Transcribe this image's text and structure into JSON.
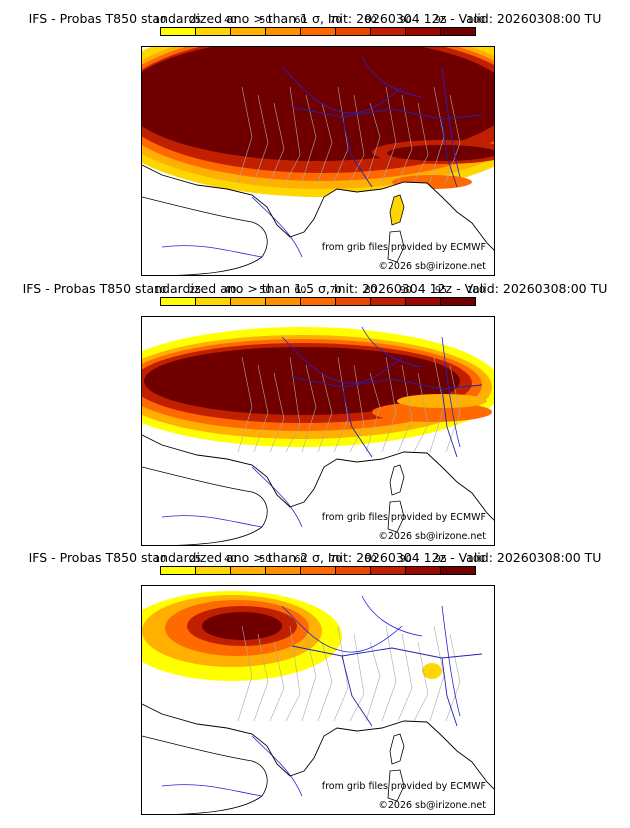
{
  "panels": [
    {
      "title": "IFS - Probas T850  standardized ano > than 1 σ, Init: 20260304 12z - Valid: 20260308:00 TU",
      "source_credit": "from grib files provided by ECMWF",
      "copyright": "©2026 sb@irizone.net"
    },
    {
      "title": "IFS - Probas T850  standardized ano > than 1.5 σ, Init: 20260304 12z - Valid: 20260308:00 TU",
      "source_credit": "from grib files provided by ECMWF",
      "copyright": "©2026 sb@irizone.net"
    },
    {
      "title": "IFS - Probas T850  standardized ano > than 2 σ, Init: 20260304 12z - Valid: 20260308:00 TU",
      "source_credit": "from grib files provided by ECMWF",
      "copyright": "©2026 sb@irizone.net"
    }
  ],
  "colorbar": {
    "ticks": [
      "10",
      "25",
      "40",
      "50",
      "60",
      "70",
      "80",
      "90",
      "95",
      "100"
    ],
    "colors": [
      "#ffff00",
      "#ffd700",
      "#ffb000",
      "#ff9000",
      "#ff6a00",
      "#e84800",
      "#c02000",
      "#9a0800",
      "#700000"
    ]
  },
  "colors": {
    "border": "#000000",
    "admin_lines": "#aaaaaa",
    "rivers": "#2222dd",
    "coast": "#000000"
  }
}
